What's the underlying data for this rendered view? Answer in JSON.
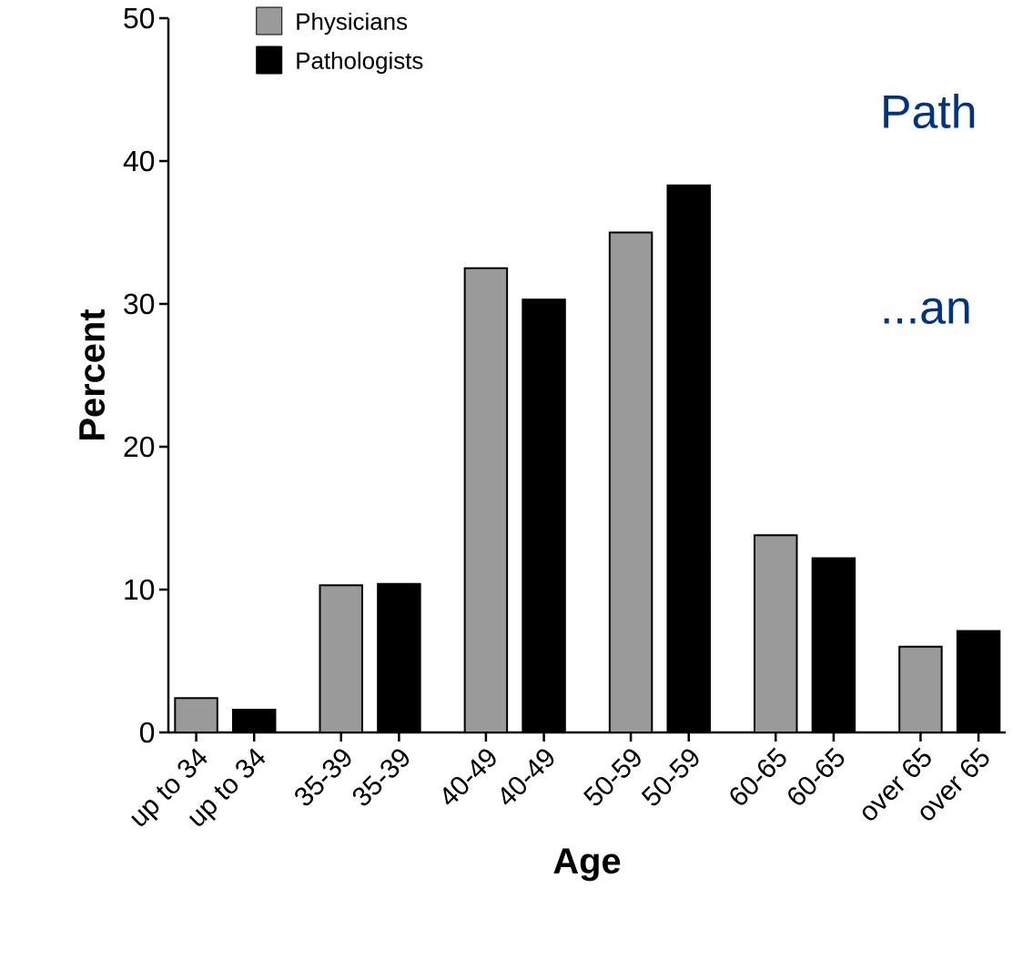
{
  "chart_data": {
    "type": "bar",
    "xlabel": "Age",
    "ylabel": "Percent",
    "categories": [
      "up to 34",
      "up to 34",
      "35-39",
      "35-39",
      "40-49",
      "40-49",
      "50-59",
      "50-59",
      "60-65",
      "60-65",
      "over 65",
      "over 65"
    ],
    "series": [
      {
        "name": "Physicians",
        "color": "#9a9a9a",
        "values": [
          2.4,
          null,
          10.3,
          null,
          32.5,
          null,
          35.0,
          null,
          13.8,
          null,
          6.0,
          null
        ]
      },
      {
        "name": "Pathologists",
        "color": "#000000",
        "values": [
          null,
          1.6,
          null,
          10.4,
          null,
          30.3,
          null,
          38.3,
          null,
          12.2,
          null,
          7.1
        ]
      }
    ],
    "ylim": [
      0,
      50
    ],
    "yticks": [
      0,
      10,
      20,
      30,
      40,
      50
    ],
    "legend": "top left",
    "grid": false,
    "annotations": [
      "Path",
      "...an"
    ]
  }
}
